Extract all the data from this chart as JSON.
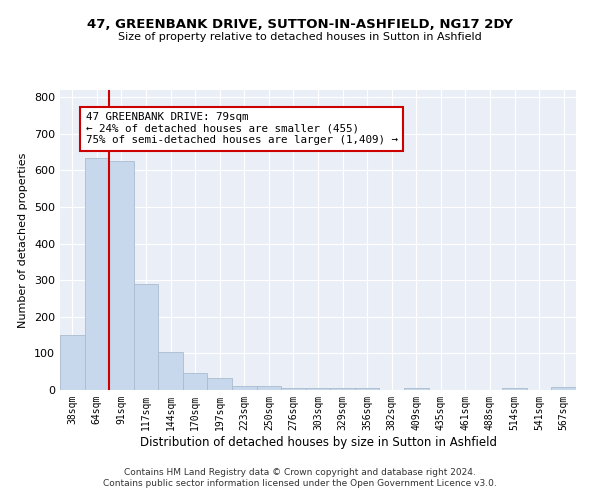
{
  "title": "47, GREENBANK DRIVE, SUTTON-IN-ASHFIELD, NG17 2DY",
  "subtitle": "Size of property relative to detached houses in Sutton in Ashfield",
  "xlabel": "Distribution of detached houses by size in Sutton in Ashfield",
  "ylabel": "Number of detached properties",
  "categories": [
    "38sqm",
    "64sqm",
    "91sqm",
    "117sqm",
    "144sqm",
    "170sqm",
    "197sqm",
    "223sqm",
    "250sqm",
    "276sqm",
    "303sqm",
    "329sqm",
    "356sqm",
    "382sqm",
    "409sqm",
    "435sqm",
    "461sqm",
    "488sqm",
    "514sqm",
    "541sqm",
    "567sqm"
  ],
  "values": [
    150,
    635,
    625,
    290,
    105,
    46,
    32,
    10,
    10,
    5,
    5,
    5,
    5,
    0,
    5,
    0,
    0,
    0,
    5,
    0,
    8
  ],
  "bar_color": "#c8d8ec",
  "bar_edge_color": "#aabcd0",
  "vline_x": 1.5,
  "vline_color": "#cc0000",
  "annotation_text": "47 GREENBANK DRIVE: 79sqm\n← 24% of detached houses are smaller (455)\n75% of semi-detached houses are larger (1,409) →",
  "annotation_box_color": "#ffffff",
  "annotation_box_edge_color": "#cc0000",
  "ylim": [
    0,
    820
  ],
  "yticks": [
    0,
    100,
    200,
    300,
    400,
    500,
    600,
    700,
    800
  ],
  "footer": "Contains HM Land Registry data © Crown copyright and database right 2024.\nContains public sector information licensed under the Open Government Licence v3.0.",
  "bg_color": "#ffffff",
  "plot_bg_color": "#eaeff7"
}
